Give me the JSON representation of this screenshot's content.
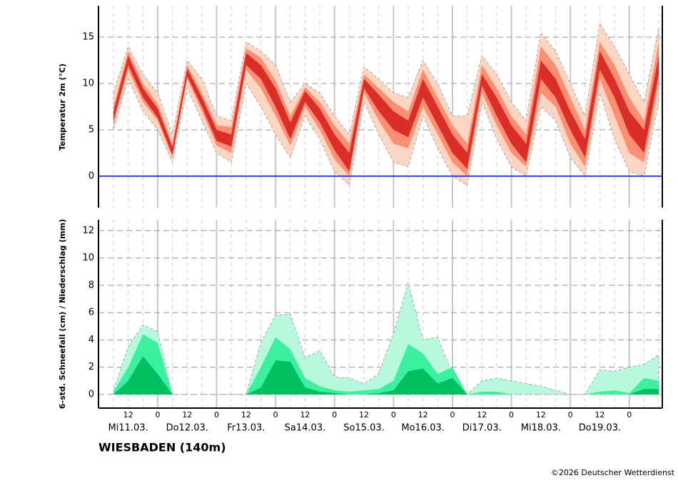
{
  "title": "WIESBADEN (140m)",
  "copyright": "©2026 Deutscher Wetterdienst",
  "chart_data": [
    {
      "type": "band",
      "ylabel": "Temperatur 2m (°C)",
      "ylim": [
        -3.4,
        18.4
      ],
      "yticks": [
        0,
        5,
        10,
        15
      ],
      "grid": true,
      "reference_line": {
        "value": 0,
        "color": "#3a3ae0"
      },
      "series": [
        {
          "color": "#fcd5c3",
          "low": [
            5,
            10.5,
            7,
            5,
            1.5,
            9.5,
            6,
            2.5,
            1.5,
            10,
            7.5,
            4.5,
            2,
            6.5,
            4,
            0.5,
            -1,
            8,
            4.5,
            1.5,
            1,
            6.5,
            3,
            0,
            -1,
            8,
            4,
            1,
            0,
            7.5,
            6,
            2,
            0,
            9,
            4,
            0.5,
            0,
            8
          ],
          "high": [
            9,
            14,
            11,
            9,
            4.5,
            12.5,
            10.5,
            6.5,
            6,
            14.5,
            13.5,
            12,
            8,
            10,
            9,
            6.5,
            4.5,
            11.8,
            10.5,
            9,
            8.5,
            12.5,
            10,
            6.5,
            6.5,
            13,
            11,
            8,
            6,
            15.5,
            13.5,
            10,
            6.5,
            16.5,
            14,
            11,
            8,
            16
          ]
        },
        {
          "color": "#fa8f74",
          "low": [
            5.5,
            11.5,
            8,
            6,
            2,
            10.5,
            7,
            3.3,
            2.5,
            11.5,
            9.5,
            6.5,
            3.3,
            7.5,
            5,
            1.8,
            0,
            9,
            6,
            3.5,
            3,
            7.5,
            4.5,
            1.5,
            0,
            9,
            5.5,
            2.5,
            1,
            9,
            7.5,
            3.5,
            1,
            10.5,
            6.5,
            2.5,
            1.5,
            10
          ],
          "high": [
            7.5,
            13.5,
            10,
            7.8,
            3.5,
            12,
            9,
            5.5,
            5.3,
            13.8,
            12.8,
            10.3,
            6.5,
            9.6,
            8,
            5.5,
            3.5,
            11,
            9.5,
            8,
            7,
            11.5,
            8.5,
            5.5,
            3.5,
            12,
            9.5,
            6.5,
            4.5,
            14,
            12,
            8.5,
            5,
            14.5,
            12,
            8.5,
            6,
            14.5
          ]
        },
        {
          "color": "#dc2e28",
          "low": [
            6,
            12,
            8.5,
            6.3,
            2.3,
            10.8,
            7.5,
            3.8,
            3.2,
            12,
            10.5,
            7.5,
            4,
            8,
            5.8,
            2.8,
            0.5,
            9.5,
            7,
            5,
            4.2,
            8.5,
            5.5,
            2.5,
            0.8,
            9.8,
            6.5,
            3.5,
            1.5,
            10.5,
            8.5,
            5,
            2,
            11.5,
            8.5,
            4.5,
            2.5,
            11
          ],
          "high": [
            7,
            13,
            9.5,
            7.3,
            3.1,
            11.6,
            8.5,
            5,
            4.5,
            13.3,
            12,
            9.5,
            5.8,
            9.2,
            7.3,
            4.5,
            2.5,
            10.5,
            8.8,
            7,
            6,
            10.5,
            7.5,
            4.5,
            2.5,
            11,
            8.5,
            5.5,
            3.5,
            12.5,
            10.5,
            7,
            4,
            13.5,
            10.5,
            7,
            5,
            13
          ]
        }
      ]
    },
    {
      "type": "area",
      "ylabel": "6-std. Schneefall (cm) / Niederschlag (mm)",
      "ylim": [
        -1,
        12.8
      ],
      "yticks": [
        0,
        2,
        4,
        6,
        8,
        10,
        12
      ],
      "grid": true,
      "categories": [
        null,
        "12",
        null,
        "0",
        null,
        "12",
        null,
        "0",
        null,
        "12",
        null,
        "0",
        null,
        "12",
        null,
        "0",
        null,
        "12",
        null,
        "0",
        null,
        "12",
        null,
        "0",
        null,
        "12",
        null,
        "0",
        null,
        "12",
        null,
        "0",
        null,
        "12",
        null,
        "0",
        null,
        null
      ],
      "day_labels": [
        null,
        "Mi11.03.",
        null,
        null,
        null,
        "Do12.03.",
        null,
        null,
        null,
        "Fr13.03.",
        null,
        null,
        null,
        "Sa14.03.",
        null,
        null,
        null,
        "So15.03.",
        null,
        null,
        null,
        "Mo16.03.",
        null,
        null,
        null,
        "Di17.03.",
        null,
        null,
        null,
        "Mi18.03.",
        null,
        null,
        null,
        "Do19.03.",
        null,
        null,
        null,
        null
      ],
      "series": [
        {
          "color": "#b8f8dd",
          "values": [
            0.3,
            3.5,
            5.1,
            4.6,
            0,
            0,
            0,
            0,
            0,
            0,
            3.8,
            5.8,
            5.9,
            2.7,
            3.2,
            1.3,
            1.2,
            0.8,
            1.5,
            4.5,
            8.2,
            4,
            4.2,
            1.5,
            0,
            1,
            1.2,
            1,
            0.8,
            0.6,
            0.3,
            0,
            0,
            1.8,
            1.7,
            2,
            2.2,
            2.9
          ]
        },
        {
          "color": "#3cf0a0",
          "values": [
            0.2,
            2,
            4.4,
            3.8,
            0,
            0,
            0,
            0,
            0,
            0,
            2,
            4.2,
            3.3,
            1.2,
            0.6,
            0.3,
            0.2,
            0.3,
            0.4,
            1,
            3.7,
            3,
            1.5,
            2,
            0,
            0.2,
            0.2,
            0,
            0,
            0,
            0,
            0,
            0,
            0.2,
            0.3,
            0.1,
            1.2,
            1
          ]
        },
        {
          "color": "#00c060",
          "values": [
            0,
            1,
            2.8,
            1.5,
            0,
            0,
            0,
            0,
            0,
            0,
            0.5,
            2.5,
            2.4,
            0.5,
            0.2,
            0.1,
            0,
            0,
            0.1,
            0.3,
            1.7,
            1.9,
            0.8,
            1.2,
            0,
            0,
            0,
            0,
            0,
            0,
            0,
            0,
            0,
            0,
            0,
            0,
            0.4,
            0.4
          ]
        }
      ]
    }
  ]
}
